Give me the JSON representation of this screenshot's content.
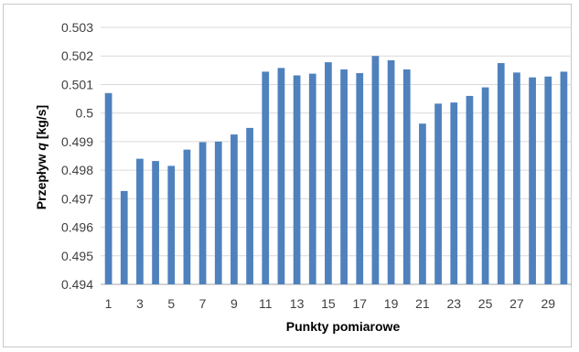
{
  "chart_data": {
    "type": "bar",
    "xlabel": "Punkty pomiarowe",
    "ylabel_parts": [
      "Przepływ ",
      "q",
      " [kg/s]"
    ],
    "ylim": [
      0.494,
      0.503
    ],
    "y_ticks": [
      "0.494",
      "0.495",
      "0.496",
      "0.497",
      "0.498",
      "0.499",
      "0.5",
      "0.501",
      "0.502",
      "0.503"
    ],
    "x_tick_labels": [
      "1",
      "3",
      "5",
      "7",
      "9",
      "11",
      "13",
      "15",
      "17",
      "19",
      "21",
      "23",
      "25",
      "27",
      "29"
    ],
    "categories": [
      "1",
      "2",
      "3",
      "4",
      "5",
      "6",
      "7",
      "8",
      "9",
      "10",
      "11",
      "12",
      "13",
      "14",
      "15",
      "16",
      "17",
      "18",
      "19",
      "20",
      "21",
      "22",
      "23",
      "24",
      "25",
      "26",
      "27",
      "28",
      "29",
      "30"
    ],
    "values": [
      0.5007,
      0.49727,
      0.4984,
      0.49832,
      0.49815,
      0.49872,
      0.49898,
      0.499,
      0.49925,
      0.49948,
      0.50145,
      0.50158,
      0.50132,
      0.50138,
      0.50178,
      0.50153,
      0.5014,
      0.502,
      0.50185,
      0.50153,
      0.49963,
      0.50033,
      0.50037,
      0.5006,
      0.5009,
      0.50175,
      0.50142,
      0.50125,
      0.50128,
      0.50145
    ],
    "grid": true,
    "bar_color": "#4f81bd",
    "grid_color": "#d9d9d9"
  }
}
